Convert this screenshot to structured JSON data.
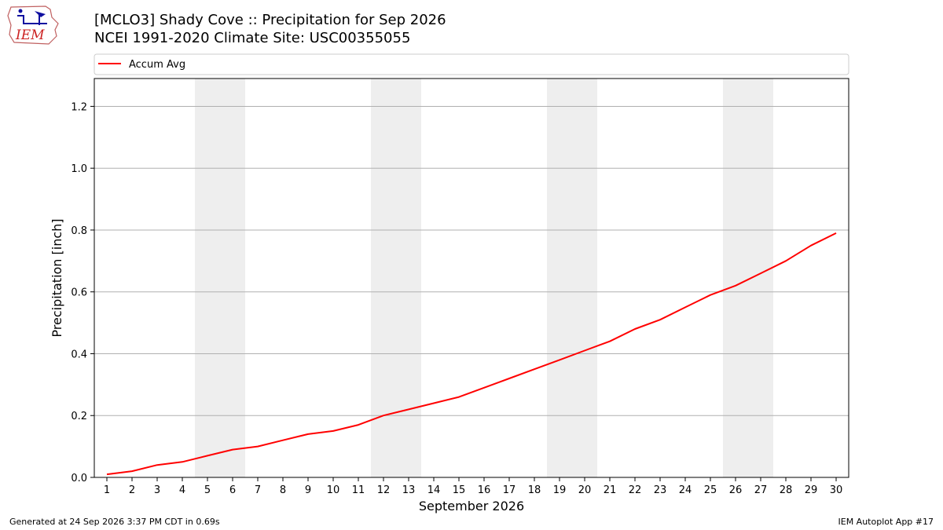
{
  "header": {
    "logo_text": "IEM",
    "title_line1": "[MCLO3] Shady Cove :: Precipitation for Sep 2026",
    "title_line2": "NCEI 1991-2020 Climate Site: USC00355055"
  },
  "footer": {
    "generated": "Generated at 24 Sep 2026 3:37 PM CDT in 0.69s",
    "app": "IEM Autoplot App #17"
  },
  "chart_data": {
    "type": "line",
    "title": "[MCLO3] Shady Cove :: Precipitation for Sep 2026",
    "subtitle": "NCEI 1991-2020 Climate Site: USC00355055",
    "xlabel": "September 2026",
    "ylabel": "Precipitation [inch]",
    "x": [
      1,
      2,
      3,
      4,
      5,
      6,
      7,
      8,
      9,
      10,
      11,
      12,
      13,
      14,
      15,
      16,
      17,
      18,
      19,
      20,
      21,
      22,
      23,
      24,
      25,
      26,
      27,
      28,
      29,
      30
    ],
    "xlim": [
      0.5,
      30.5
    ],
    "ylim": [
      0,
      1.29
    ],
    "yticks": [
      0.0,
      0.2,
      0.4,
      0.6,
      0.8,
      1.0,
      1.2
    ],
    "ytick_labels": [
      "0.0",
      "0.2",
      "0.4",
      "0.6",
      "0.8",
      "1.0",
      "1.2"
    ],
    "xtick_labels": [
      "1",
      "2",
      "3",
      "4",
      "5",
      "6",
      "7",
      "8",
      "9",
      "10",
      "11",
      "12",
      "13",
      "14",
      "15",
      "16",
      "17",
      "18",
      "19",
      "20",
      "21",
      "22",
      "23",
      "24",
      "25",
      "26",
      "27",
      "28",
      "29",
      "30"
    ],
    "grid": "horizontal",
    "legend_position": "top",
    "weekend_shading": [
      [
        5,
        6
      ],
      [
        12,
        13
      ],
      [
        19,
        20
      ],
      [
        26,
        27
      ]
    ],
    "shading_color": "#eeeeee",
    "series": [
      {
        "name": "Accum Avg",
        "color": "#ff0000",
        "values": [
          0.01,
          0.02,
          0.04,
          0.05,
          0.07,
          0.09,
          0.1,
          0.12,
          0.14,
          0.15,
          0.17,
          0.2,
          0.22,
          0.24,
          0.26,
          0.29,
          0.32,
          0.35,
          0.38,
          0.41,
          0.44,
          0.48,
          0.51,
          0.55,
          0.59,
          0.62,
          0.66,
          0.7,
          0.75,
          0.79
        ]
      }
    ]
  }
}
